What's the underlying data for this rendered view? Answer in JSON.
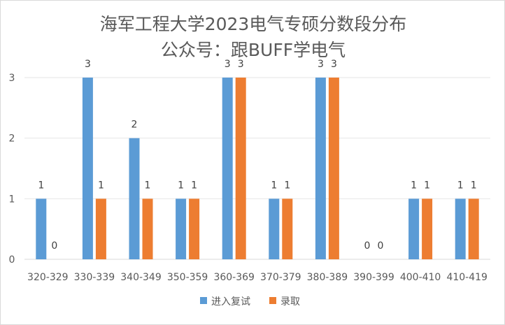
{
  "chart_data": {
    "type": "bar",
    "title": "海军工程大学2023电气专硕分数段分布",
    "subtitle": "公众号：跟BUFF学电气",
    "categories": [
      "320-329",
      "330-339",
      "340-349",
      "350-359",
      "360-369",
      "370-379",
      "380-389",
      "390-399",
      "400-410",
      "410-419"
    ],
    "series": [
      {
        "name": "进入复试",
        "color": "#5b9bd5",
        "values": [
          1,
          3,
          2,
          1,
          3,
          1,
          3,
          0,
          1,
          1
        ]
      },
      {
        "name": "录取",
        "color": "#ed7d31",
        "values": [
          0,
          1,
          1,
          1,
          3,
          1,
          3,
          0,
          1,
          1
        ]
      }
    ],
    "ylim": [
      0,
      3
    ],
    "yticks": [
      0,
      1,
      2,
      3
    ],
    "legend_position": "bottom",
    "gridlines": true
  }
}
